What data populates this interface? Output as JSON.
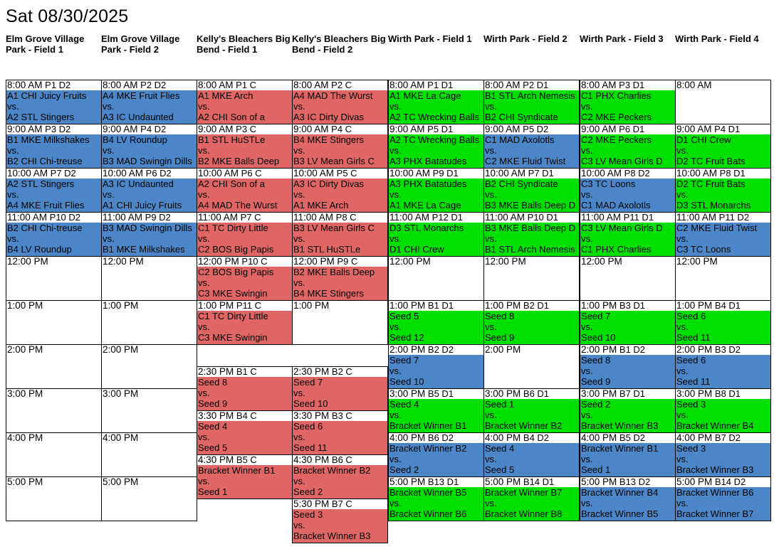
{
  "page": {
    "title": "Sat 08/30/2025"
  },
  "fields": [
    "Elm Grove Village Park - Field 1",
    "Elm Grove Village Park - Field 2",
    "Kelly's Bleachers Big Bend - Field 1",
    "Kelly's Bleachers Big Bend - Field 2",
    "Wirth Park - Field 1",
    "Wirth Park - Field 2",
    "Wirth Park - Field 3",
    "Wirth Park - Field 4"
  ],
  "colors": {
    "blue": "#4a86c8",
    "red": "#e06666",
    "green": "#00e000",
    "white": "#ffffff"
  },
  "slots": [
    {
      "col": 0,
      "start": 8.0,
      "end": 9.0,
      "time": "8:00 AM",
      "code": "P1 D2",
      "color": "blue",
      "lines": [
        "A1 CHI Juicy Fruits",
        "vs.",
        "A2 STL Stingers"
      ]
    },
    {
      "col": 0,
      "start": 9.0,
      "end": 10.0,
      "time": "9:00 AM",
      "code": "P3 D2",
      "color": "blue",
      "lines": [
        "B1 MKE Milkshakes",
        "vs.",
        "B2 CHI Chi-treuse"
      ]
    },
    {
      "col": 0,
      "start": 10.0,
      "end": 11.0,
      "time": "10:00 AM",
      "code": "P7 D2",
      "color": "blue",
      "lines": [
        "A2 STL Stingers",
        "vs.",
        "A4 MKE Fruit Flies"
      ]
    },
    {
      "col": 0,
      "start": 11.0,
      "end": 12.0,
      "time": "11:00 AM",
      "code": "P10 D2",
      "color": "blue",
      "lines": [
        "B2 CHI Chi-treuse",
        "vs.",
        "B4 LV Roundup"
      ]
    },
    {
      "col": 0,
      "start": 12.0,
      "end": 13.0,
      "time": "12:00 PM",
      "code": "",
      "color": "white",
      "lines": []
    },
    {
      "col": 0,
      "start": 13.0,
      "end": 14.0,
      "time": "1:00 PM",
      "code": "",
      "color": "white",
      "lines": []
    },
    {
      "col": 0,
      "start": 14.0,
      "end": 15.0,
      "time": "2:00 PM",
      "code": "",
      "color": "white",
      "lines": []
    },
    {
      "col": 0,
      "start": 15.0,
      "end": 16.0,
      "time": "3:00 PM",
      "code": "",
      "color": "white",
      "lines": []
    },
    {
      "col": 0,
      "start": 16.0,
      "end": 17.0,
      "time": "4:00 PM",
      "code": "",
      "color": "white",
      "lines": []
    },
    {
      "col": 0,
      "start": 17.0,
      "end": 18.0,
      "time": "5:00 PM",
      "code": "",
      "color": "white",
      "lines": []
    },
    {
      "col": 1,
      "start": 8.0,
      "end": 9.0,
      "time": "8:00 AM",
      "code": "P2 D2",
      "color": "blue",
      "lines": [
        "A4 MKE Fruit Flies",
        "vs.",
        "A3 IC Undaunted"
      ]
    },
    {
      "col": 1,
      "start": 9.0,
      "end": 10.0,
      "time": "9:00 AM",
      "code": "P4 D2",
      "color": "blue",
      "lines": [
        "B4 LV Roundup",
        "vs.",
        "B3 MAD Swingin Dills"
      ]
    },
    {
      "col": 1,
      "start": 10.0,
      "end": 11.0,
      "time": "10:00 AM",
      "code": "P6 D2",
      "color": "blue",
      "lines": [
        "A3 IC Undaunted",
        "vs.",
        "A1 CHI Juicy Fruits"
      ]
    },
    {
      "col": 1,
      "start": 11.0,
      "end": 12.0,
      "time": "11:00 AM",
      "code": "P9 D2",
      "color": "blue",
      "lines": [
        "B3 MAD Swingin Dills",
        "vs.",
        "B1 MKE Milkshakes"
      ]
    },
    {
      "col": 1,
      "start": 12.0,
      "end": 13.0,
      "time": "12:00 PM",
      "code": "",
      "color": "white",
      "lines": []
    },
    {
      "col": 1,
      "start": 13.0,
      "end": 14.0,
      "time": "1:00 PM",
      "code": "",
      "color": "white",
      "lines": []
    },
    {
      "col": 1,
      "start": 14.0,
      "end": 15.0,
      "time": "2:00 PM",
      "code": "",
      "color": "white",
      "lines": []
    },
    {
      "col": 1,
      "start": 15.0,
      "end": 16.0,
      "time": "3:00 PM",
      "code": "",
      "color": "white",
      "lines": []
    },
    {
      "col": 1,
      "start": 16.0,
      "end": 17.0,
      "time": "4:00 PM",
      "code": "",
      "color": "white",
      "lines": []
    },
    {
      "col": 1,
      "start": 17.0,
      "end": 18.0,
      "time": "5:00 PM",
      "code": "",
      "color": "white",
      "lines": []
    },
    {
      "col": 2,
      "start": 8.0,
      "end": 9.0,
      "time": "8:00 AM",
      "code": "P1 C",
      "color": "red",
      "lines": [
        "A1 MKE Arch",
        "vs.",
        "A2 CHI Son of a"
      ]
    },
    {
      "col": 2,
      "start": 9.0,
      "end": 10.0,
      "time": "9:00 AM",
      "code": "P3 C",
      "color": "red",
      "lines": [
        "B1 STL HuSTLe",
        "vs.",
        "B2 MKE Balls Deep"
      ]
    },
    {
      "col": 2,
      "start": 10.0,
      "end": 11.0,
      "time": "10:00 AM",
      "code": "P6 C",
      "color": "red",
      "lines": [
        "A2 CHI Son of a",
        "vs.",
        "A4 MAD The Wurst"
      ]
    },
    {
      "col": 2,
      "start": 11.0,
      "end": 12.0,
      "time": "11:00 AM",
      "code": "P7 C",
      "color": "red",
      "lines": [
        "C1 TC Dirty Little",
        "vs.",
        "C2 BOS Big Papis"
      ]
    },
    {
      "col": 2,
      "start": 12.0,
      "end": 13.0,
      "time": "12:00 PM",
      "code": "P10 C",
      "color": "red",
      "lines": [
        "C2 BOS Big Papis",
        "vs.",
        "C3 MKE Swingin"
      ]
    },
    {
      "col": 2,
      "start": 13.0,
      "end": 14.0,
      "time": "1:00 PM",
      "code": "P11 C",
      "color": "red",
      "lines": [
        "C1 TC Dirty Little",
        "vs.",
        "C3 MKE Swingin"
      ]
    },
    {
      "col": 2,
      "start": 14.5,
      "end": 15.5,
      "time": "2:30 PM",
      "code": "B1 C",
      "color": "red",
      "lines": [
        "Seed 8",
        "vs.",
        "Seed 9"
      ]
    },
    {
      "col": 2,
      "start": 15.5,
      "end": 16.5,
      "time": "3:30 PM",
      "code": "B4 C",
      "color": "red",
      "lines": [
        "Seed 4",
        "vs.",
        "Seed 5"
      ]
    },
    {
      "col": 2,
      "start": 16.5,
      "end": 17.5,
      "time": "4:30 PM",
      "code": "B5 C",
      "color": "red",
      "lines": [
        "Bracket Winner B1",
        "vs.",
        "Seed 1"
      ]
    },
    {
      "col": 3,
      "start": 8.0,
      "end": 9.0,
      "time": "8:00 AM",
      "code": "P2 C",
      "color": "red",
      "lines": [
        "A4 MAD The Wurst",
        "vs.",
        "A3 IC Dirty Divas"
      ]
    },
    {
      "col": 3,
      "start": 9.0,
      "end": 10.0,
      "time": "9:00 AM",
      "code": "P4 C",
      "color": "red",
      "lines": [
        "B4 MKE Stingers",
        "vs.",
        "B3 LV Mean Girls C"
      ]
    },
    {
      "col": 3,
      "start": 10.0,
      "end": 11.0,
      "time": "10:00 AM",
      "code": "P5 C",
      "color": "red",
      "lines": [
        "A3 IC Dirty Divas",
        "vs.",
        "A1 MKE Arch"
      ]
    },
    {
      "col": 3,
      "start": 11.0,
      "end": 12.0,
      "time": "11:00 AM",
      "code": "P8 C",
      "color": "red",
      "lines": [
        "B3 LV Mean Girls C",
        "vs.",
        "B1 STL HuSTLe"
      ]
    },
    {
      "col": 3,
      "start": 12.0,
      "end": 13.0,
      "time": "12:00 PM",
      "code": "P9 C",
      "color": "red",
      "lines": [
        "B2 MKE Balls Deep",
        "vs.",
        "B4 MKE Stingers"
      ]
    },
    {
      "col": 3,
      "start": 13.0,
      "end": 14.0,
      "time": "1:00 PM",
      "code": "",
      "color": "white",
      "lines": []
    },
    {
      "col": 3,
      "start": 14.5,
      "end": 15.5,
      "time": "2:30 PM",
      "code": "B2 C",
      "color": "red",
      "lines": [
        "Seed 7",
        "vs.",
        "Seed 10"
      ]
    },
    {
      "col": 3,
      "start": 15.5,
      "end": 16.5,
      "time": "3:30 PM",
      "code": "B3 C",
      "color": "red",
      "lines": [
        "Seed 6",
        "vs.",
        "Seed 11"
      ]
    },
    {
      "col": 3,
      "start": 16.5,
      "end": 17.5,
      "time": "4:30 PM",
      "code": "B6 C",
      "color": "red",
      "lines": [
        "Bracket Winner B2",
        "vs.",
        "Seed 2"
      ]
    },
    {
      "col": 3,
      "start": 17.5,
      "end": 18.5,
      "time": "5:30 PM",
      "code": "B7 C",
      "color": "red",
      "lines": [
        "Seed 3",
        "vs.",
        "Bracket Winner B3"
      ]
    },
    {
      "col": 4,
      "start": 8.0,
      "end": 9.0,
      "time": "8:00 AM",
      "code": "P1 D1",
      "color": "green",
      "lines": [
        "A1 MKE La Cage",
        "vs.",
        "A2 TC Wrecking Balls"
      ]
    },
    {
      "col": 4,
      "start": 9.0,
      "end": 10.0,
      "time": "9:00 AM",
      "code": "P5 D1",
      "color": "green",
      "lines": [
        "A2 TC Wrecking Balls",
        "vs.",
        "A3 PHX Batatudes"
      ]
    },
    {
      "col": 4,
      "start": 10.0,
      "end": 11.0,
      "time": "10:00 AM",
      "code": "P9 D1",
      "color": "green",
      "lines": [
        "A3 PHX Batatudes",
        "vs.",
        "A1 MKE La Cage"
      ]
    },
    {
      "col": 4,
      "start": 11.0,
      "end": 12.0,
      "time": "11:00 AM",
      "code": "P12 D1",
      "color": "green",
      "lines": [
        "D3 STL Monarchs",
        "vs.",
        "D1 CHI Crew"
      ]
    },
    {
      "col": 4,
      "start": 12.0,
      "end": 13.0,
      "time": "12:00 PM",
      "code": "",
      "color": "white",
      "lines": []
    },
    {
      "col": 4,
      "start": 13.0,
      "end": 14.0,
      "time": "1:00 PM",
      "code": "B1 D1",
      "color": "green",
      "lines": [
        "Seed 5",
        "vs.",
        "Seed 12"
      ]
    },
    {
      "col": 4,
      "start": 14.0,
      "end": 15.0,
      "time": "2:00 PM",
      "code": "B2 D2",
      "color": "blue",
      "lines": [
        "Seed 7",
        "vs.",
        "Seed 10"
      ]
    },
    {
      "col": 4,
      "start": 15.0,
      "end": 16.0,
      "time": "3:00 PM",
      "code": "B5 D1",
      "color": "green",
      "lines": [
        "Seed 4",
        "vs.",
        "Bracket Winner B1"
      ]
    },
    {
      "col": 4,
      "start": 16.0,
      "end": 17.0,
      "time": "4:00 PM",
      "code": "B6 D2",
      "color": "blue",
      "lines": [
        "Bracket Winner B2",
        "vs.",
        "Seed 2"
      ]
    },
    {
      "col": 4,
      "start": 17.0,
      "end": 18.0,
      "time": "5:00 PM",
      "code": "B13 D1",
      "color": "green",
      "lines": [
        "Bracket Winner B5",
        "vs.",
        "Bracket Winner B6"
      ]
    },
    {
      "col": 5,
      "start": 8.0,
      "end": 9.0,
      "time": "8:00 AM",
      "code": "P2 D1",
      "color": "green",
      "lines": [
        "B1 STL Arch Nemesis",
        "vs.",
        "B2 CHI Syndicate"
      ]
    },
    {
      "col": 5,
      "start": 9.0,
      "end": 10.0,
      "time": "9:00 AM",
      "code": "P5 D2",
      "color": "blue",
      "lines": [
        "C1 MAD Axolotls",
        "vs.",
        "C2 MKE Fluid Twist"
      ]
    },
    {
      "col": 5,
      "start": 10.0,
      "end": 11.0,
      "time": "10:00 AM",
      "code": "P7 D1",
      "color": "green",
      "lines": [
        "B2 CHI Syndicate",
        "vs.",
        "B3 MKE Balls Deep D"
      ]
    },
    {
      "col": 5,
      "start": 11.0,
      "end": 12.0,
      "time": "11:00 AM",
      "code": "P10 D1",
      "color": "green",
      "lines": [
        "B3 MKE Balls Deep D",
        "vs.",
        "B1 STL Arch Nemesis"
      ]
    },
    {
      "col": 5,
      "start": 12.0,
      "end": 13.0,
      "time": "12:00 PM",
      "code": "",
      "color": "white",
      "lines": []
    },
    {
      "col": 5,
      "start": 13.0,
      "end": 14.0,
      "time": "1:00 PM",
      "code": "B2 D1",
      "color": "green",
      "lines": [
        "Seed 8",
        "vs.",
        "Seed 9"
      ]
    },
    {
      "col": 5,
      "start": 14.0,
      "end": 15.0,
      "time": "2:00 PM",
      "code": "",
      "color": "white",
      "lines": []
    },
    {
      "col": 5,
      "start": 15.0,
      "end": 16.0,
      "time": "3:00 PM",
      "code": "B6 D1",
      "color": "green",
      "lines": [
        "Seed 1",
        "vs.",
        "Bracket Winner B2"
      ]
    },
    {
      "col": 5,
      "start": 16.0,
      "end": 17.0,
      "time": "4:00 PM",
      "code": "B4 D2",
      "color": "blue",
      "lines": [
        "Seed 4",
        "vs.",
        "Seed 5"
      ]
    },
    {
      "col": 5,
      "start": 17.0,
      "end": 18.0,
      "time": "5:00 PM",
      "code": "B14 D1",
      "color": "green",
      "lines": [
        "Bracket Winner B7",
        "vs.",
        "Bracket Winner B8"
      ]
    },
    {
      "col": 6,
      "start": 8.0,
      "end": 9.0,
      "time": "8:00 AM",
      "code": "P3 D1",
      "color": "green",
      "lines": [
        "C1 PHX Charlies",
        "vs.",
        "C2 MKE Peckers"
      ]
    },
    {
      "col": 6,
      "start": 9.0,
      "end": 10.0,
      "time": "9:00 AM",
      "code": "P6 D1",
      "color": "green",
      "lines": [
        "C2 MKE Peckers",
        "vs.",
        "C3 LV Mean Girls D"
      ]
    },
    {
      "col": 6,
      "start": 10.0,
      "end": 11.0,
      "time": "10:00 AM",
      "code": "P8 D2",
      "color": "blue",
      "lines": [
        "C3 TC Loons",
        "vs.",
        "C1 MAD Axolotls"
      ]
    },
    {
      "col": 6,
      "start": 11.0,
      "end": 12.0,
      "time": "11:00 AM",
      "code": "P11 D1",
      "color": "green",
      "lines": [
        "C3 LV Mean Girls D",
        "vs.",
        "C1 PHX Charlies"
      ]
    },
    {
      "col": 6,
      "start": 12.0,
      "end": 13.0,
      "time": "12:00 PM",
      "code": "",
      "color": "white",
      "lines": []
    },
    {
      "col": 6,
      "start": 13.0,
      "end": 14.0,
      "time": "1:00 PM",
      "code": "B3 D1",
      "color": "green",
      "lines": [
        "Seed 7",
        "vs.",
        "Seed 10"
      ]
    },
    {
      "col": 6,
      "start": 14.0,
      "end": 15.0,
      "time": "2:00 PM",
      "code": "B1 D2",
      "color": "blue",
      "lines": [
        "Seed 8",
        "vs.",
        "Seed 9"
      ]
    },
    {
      "col": 6,
      "start": 15.0,
      "end": 16.0,
      "time": "3:00 PM",
      "code": "B7 D1",
      "color": "green",
      "lines": [
        "Seed 2",
        "vs.",
        "Bracket Winner B3"
      ]
    },
    {
      "col": 6,
      "start": 16.0,
      "end": 17.0,
      "time": "4:00 PM",
      "code": "B5 D2",
      "color": "blue",
      "lines": [
        "Bracket Winner B1",
        "vs.",
        "Seed 1"
      ]
    },
    {
      "col": 6,
      "start": 17.0,
      "end": 18.0,
      "time": "5:00 PM",
      "code": "B13 D2",
      "color": "blue",
      "lines": [
        "Bracket Winner B4",
        "vs.",
        "Bracket Winner B5"
      ]
    },
    {
      "col": 7,
      "start": 8.0,
      "end": 9.0,
      "time": "8:00 AM",
      "code": "",
      "color": "white",
      "lines": []
    },
    {
      "col": 7,
      "start": 9.0,
      "end": 10.0,
      "time": "9:00 AM",
      "code": "P4 D1",
      "color": "green",
      "lines": [
        "D1 CHI Crew",
        "vs.",
        "D2 TC Fruit Bats"
      ]
    },
    {
      "col": 7,
      "start": 10.0,
      "end": 11.0,
      "time": "10:00 AM",
      "code": "P8 D1",
      "color": "green",
      "lines": [
        "D2 TC Fruit Bats",
        "vs.",
        "D3 STL Monarchs"
      ]
    },
    {
      "col": 7,
      "start": 11.0,
      "end": 12.0,
      "time": "11:00 AM",
      "code": "P11 D2",
      "color": "blue",
      "lines": [
        "C2 MKE Fluid Twist",
        "vs.",
        "C3 TC Loons"
      ]
    },
    {
      "col": 7,
      "start": 12.0,
      "end": 13.0,
      "time": "12:00 PM",
      "code": "",
      "color": "white",
      "lines": []
    },
    {
      "col": 7,
      "start": 13.0,
      "end": 14.0,
      "time": "1:00 PM",
      "code": "B4 D1",
      "color": "green",
      "lines": [
        "Seed 6",
        "vs.",
        "Seed 11"
      ]
    },
    {
      "col": 7,
      "start": 14.0,
      "end": 15.0,
      "time": "2:00 PM",
      "code": "B3 D2",
      "color": "blue",
      "lines": [
        "Seed 6",
        "vs.",
        "Seed 11"
      ]
    },
    {
      "col": 7,
      "start": 15.0,
      "end": 16.0,
      "time": "3:00 PM",
      "code": "B8 D1",
      "color": "green",
      "lines": [
        "Seed 3",
        "vs.",
        "Bracket Winner B4"
      ]
    },
    {
      "col": 7,
      "start": 16.0,
      "end": 17.0,
      "time": "4:00 PM",
      "code": "B7 D2",
      "color": "blue",
      "lines": [
        "Seed 3",
        "vs.",
        "Bracket Winner B3"
      ]
    },
    {
      "col": 7,
      "start": 17.0,
      "end": 18.0,
      "time": "5:00 PM",
      "code": "B14 D2",
      "color": "blue",
      "lines": [
        "Bracket Winner B6",
        "vs.",
        "Bracket Winner B7"
      ]
    }
  ]
}
